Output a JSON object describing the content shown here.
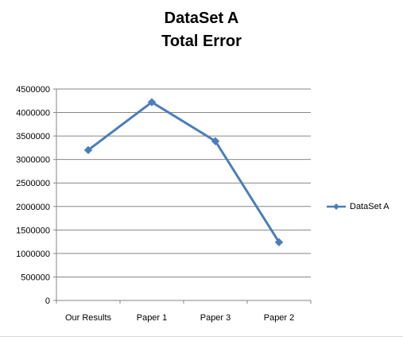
{
  "chart_data": {
    "type": "line",
    "title_line1": "DataSet A",
    "title_line2": "Total Error",
    "xlabel": "",
    "ylabel": "",
    "categories": [
      "Our Results",
      "Paper 1",
      "Paper 3",
      "Paper 2"
    ],
    "series": [
      {
        "name": "DataSet A",
        "values": [
          3200000,
          4220000,
          3390000,
          1240000
        ],
        "color": "#4a7ebb"
      }
    ],
    "ylim": [
      0,
      4500000
    ],
    "yticks": [
      "0",
      "500000",
      "1000000",
      "1500000",
      "2000000",
      "2500000",
      "3000000",
      "3500000",
      "4000000",
      "4500000"
    ],
    "grid": true,
    "legend_position": "right"
  }
}
